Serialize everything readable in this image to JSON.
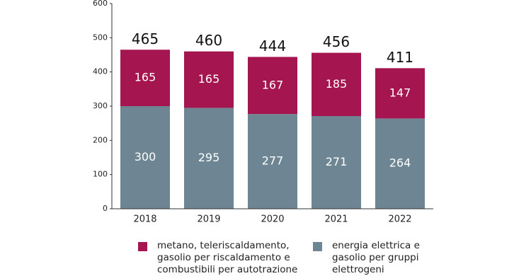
{
  "chart_data": {
    "type": "stacked_bar",
    "categories": [
      "2018",
      "2019",
      "2020",
      "2021",
      "2022"
    ],
    "series": [
      {
        "name": "energia elettrica e gasolio per gruppi elettrogeni",
        "color": "#6e8694",
        "values": [
          300,
          295,
          277,
          271,
          264
        ]
      },
      {
        "name": "metano, teleriscaldamento, gasolio per riscaldamento e combustibili per autotrazione",
        "color": "#a5154f",
        "values": [
          165,
          165,
          167,
          185,
          147
        ]
      }
    ],
    "totals": [
      465,
      460,
      444,
      456,
      411
    ],
    "ylim": [
      0,
      600
    ],
    "yticks": [
      0,
      100,
      200,
      300,
      400,
      500,
      600
    ],
    "grid": false
  }
}
